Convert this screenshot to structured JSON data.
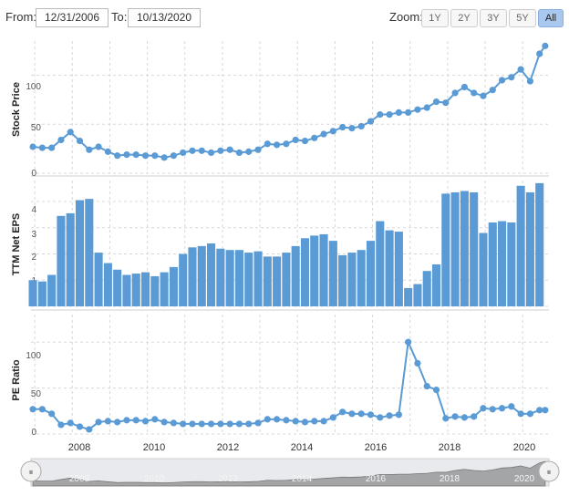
{
  "toolbar": {
    "from_label": "From:",
    "from_value": "12/31/2006",
    "to_label": "To:",
    "to_value": "10/13/2020",
    "zoom_label": "Zoom:",
    "zoom_buttons": [
      "1Y",
      "2Y",
      "3Y",
      "5Y",
      "All"
    ],
    "zoom_active": "All"
  },
  "colors": {
    "series": "#5b9bd5",
    "grid": "#d8d8d8",
    "navigator_fill": "#a0a0a0"
  },
  "chart_data": [
    {
      "type": "line",
      "ylabel": "Stock Price",
      "yticks": [
        0,
        50,
        100
      ],
      "ylim": [
        0,
        135
      ],
      "x": [
        2006.95,
        2007.2,
        2007.45,
        2007.7,
        2007.95,
        2008.2,
        2008.45,
        2008.7,
        2008.95,
        2009.2,
        2009.45,
        2009.7,
        2009.95,
        2010.2,
        2010.45,
        2010.7,
        2010.95,
        2011.2,
        2011.45,
        2011.7,
        2011.95,
        2012.2,
        2012.45,
        2012.7,
        2012.95,
        2013.2,
        2013.45,
        2013.7,
        2013.95,
        2014.2,
        2014.45,
        2014.7,
        2014.95,
        2015.2,
        2015.45,
        2015.7,
        2015.95,
        2016.2,
        2016.45,
        2016.7,
        2016.95,
        2017.2,
        2017.45,
        2017.7,
        2017.95,
        2018.2,
        2018.45,
        2018.7,
        2018.95,
        2019.2,
        2019.45,
        2019.7,
        2019.95,
        2020.2,
        2020.45,
        2020.6
      ],
      "y": [
        27,
        26,
        26,
        34,
        42,
        33,
        24,
        27,
        22,
        18,
        19,
        19,
        18,
        18,
        16,
        18,
        21,
        23,
        23,
        21,
        23,
        24,
        21,
        22,
        24,
        30,
        29,
        30,
        34,
        33,
        36,
        40,
        43,
        47,
        46,
        48,
        53,
        60,
        60,
        62,
        62,
        65,
        67,
        73,
        72,
        82,
        88,
        82,
        79,
        85,
        95,
        98,
        106,
        94,
        122,
        130
      ]
    },
    {
      "type": "bar",
      "ylabel": "TTM Net EPS",
      "yticks": [
        0,
        1,
        2,
        3,
        4
      ],
      "ylim": [
        0,
        4.8
      ],
      "x": [
        2006.95,
        2007.2,
        2007.45,
        2007.7,
        2007.95,
        2008.2,
        2008.45,
        2008.7,
        2008.95,
        2009.2,
        2009.45,
        2009.7,
        2009.95,
        2010.2,
        2010.45,
        2010.7,
        2010.95,
        2011.2,
        2011.45,
        2011.7,
        2011.95,
        2012.2,
        2012.45,
        2012.7,
        2012.95,
        2013.2,
        2013.45,
        2013.7,
        2013.95,
        2014.2,
        2014.45,
        2014.7,
        2014.95,
        2015.2,
        2015.45,
        2015.7,
        2015.95,
        2016.2,
        2016.45,
        2016.7,
        2016.95,
        2017.2,
        2017.45,
        2017.7,
        2017.95,
        2018.2,
        2018.45,
        2018.7,
        2018.95,
        2019.2,
        2019.45,
        2019.7,
        2019.95,
        2020.2,
        2020.45
      ],
      "values": [
        1.0,
        0.95,
        1.2,
        3.45,
        3.55,
        4.05,
        4.1,
        2.05,
        1.65,
        1.4,
        1.2,
        1.25,
        1.3,
        1.15,
        1.3,
        1.5,
        2.0,
        2.25,
        2.3,
        2.4,
        2.2,
        2.15,
        2.15,
        2.05,
        2.1,
        1.9,
        1.9,
        2.05,
        2.3,
        2.6,
        2.7,
        2.75,
        2.5,
        1.95,
        2.05,
        2.15,
        2.5,
        3.25,
        2.9,
        2.85,
        0.7,
        0.85,
        1.35,
        1.6,
        4.3,
        4.35,
        4.4,
        4.35,
        2.8,
        3.2,
        3.25,
        3.2,
        4.6,
        4.35,
        4.7
      ]
    },
    {
      "type": "line",
      "ylabel": "PE Ratio",
      "yticks": [
        0,
        50,
        100
      ],
      "ylim": [
        0,
        130
      ],
      "x": [
        2006.95,
        2007.2,
        2007.45,
        2007.7,
        2007.95,
        2008.2,
        2008.45,
        2008.7,
        2008.95,
        2009.2,
        2009.45,
        2009.7,
        2009.95,
        2010.2,
        2010.45,
        2010.7,
        2010.95,
        2011.2,
        2011.45,
        2011.7,
        2011.95,
        2012.2,
        2012.45,
        2012.7,
        2012.95,
        2013.2,
        2013.45,
        2013.7,
        2013.95,
        2014.2,
        2014.45,
        2014.7,
        2014.95,
        2015.2,
        2015.45,
        2015.7,
        2015.95,
        2016.2,
        2016.45,
        2016.7,
        2016.95,
        2017.2,
        2017.45,
        2017.7,
        2017.95,
        2018.2,
        2018.45,
        2018.7,
        2018.95,
        2019.2,
        2019.45,
        2019.7,
        2019.95,
        2020.2,
        2020.45,
        2020.6
      ],
      "y": [
        27,
        27,
        22,
        10,
        12,
        8,
        5,
        13,
        14,
        13,
        15,
        15,
        14,
        16,
        13,
        12,
        11,
        11,
        11,
        11,
        11,
        11,
        11,
        11,
        12,
        16,
        16,
        15,
        14,
        13,
        14,
        14,
        18,
        24,
        22,
        22,
        21,
        18,
        20,
        21,
        100,
        77,
        52,
        48,
        17,
        19,
        18,
        19,
        28,
        27,
        28,
        30,
        22,
        22,
        26,
        26
      ]
    }
  ],
  "x_axis": {
    "ticks": [
      "2008",
      "2010",
      "2012",
      "2014",
      "2016",
      "2018",
      "2020"
    ],
    "tick_values": [
      2008,
      2010,
      2012,
      2014,
      2016,
      2018,
      2020
    ],
    "xlim": [
      2006.9,
      2020.7
    ]
  },
  "navigator": {
    "labels": [
      "2008",
      "2010",
      "2012",
      "2014",
      "2016",
      "2018",
      "2020"
    ],
    "handle_left": "⏸",
    "handle_right": "⏸"
  }
}
